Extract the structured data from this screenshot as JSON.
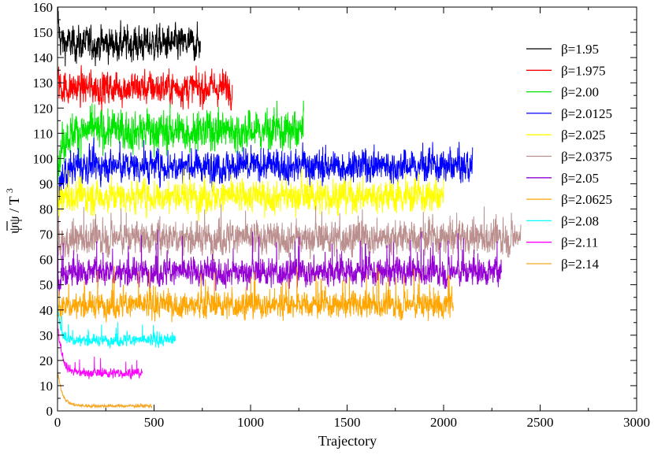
{
  "chart_data": {
    "type": "line",
    "title": "",
    "xlabel": "Trajectory",
    "ylabel_main": "ψψ / T",
    "ylabel_sup": "3",
    "xlim": [
      0,
      3000
    ],
    "ylim": [
      0,
      160
    ],
    "xticks": [
      0,
      500,
      1000,
      1500,
      2000,
      2500,
      3000
    ],
    "yticks": [
      0,
      10,
      20,
      30,
      40,
      50,
      60,
      70,
      80,
      90,
      100,
      110,
      120,
      130,
      140,
      150,
      160
    ],
    "grid": false,
    "legend_position": "top-right",
    "series": [
      {
        "name": "β=1.95",
        "color": "#000000",
        "start": 160,
        "mean": 145.5,
        "amp": 3.0,
        "end": 740,
        "spike": 0.0,
        "spikeAmp": 0,
        "relax": 8
      },
      {
        "name": "β=1.975",
        "color": "#ff0000",
        "start": 132,
        "mean": 128,
        "amp": 3.0,
        "end": 905,
        "spike": 0.0,
        "spikeAmp": 0,
        "relax": 10
      },
      {
        "name": "β=2.00",
        "color": "#00e600",
        "start": 95,
        "mean": 111,
        "amp": 3.5,
        "end": 1275,
        "spike": 0.02,
        "spikeAmp": 6,
        "relax": 25
      },
      {
        "name": "β=2.0125",
        "color": "#0000ff",
        "start": 86,
        "mean": 97,
        "amp": 2.8,
        "end": 2150,
        "spike": 0.02,
        "spikeAmp": 8,
        "relax": 30
      },
      {
        "name": "β=2.025",
        "color": "#ffff00",
        "start": 82,
        "mean": 85,
        "amp": 2.8,
        "end": 2000,
        "spike": 0.03,
        "spikeAmp": 8,
        "relax": 20
      },
      {
        "name": "β=2.0375",
        "color": "#bc8f8f",
        "start": 63,
        "mean": 68.5,
        "amp": 2.8,
        "end": 2400,
        "spike": 0.04,
        "spikeAmp": 10,
        "relax": 40
      },
      {
        "name": "β=2.05",
        "color": "#9400d3",
        "start": 50,
        "mean": 55,
        "amp": 2.4,
        "end": 2300,
        "spike": 0.04,
        "spikeAmp": 14,
        "relax": 30
      },
      {
        "name": "β=2.0625",
        "color": "#ffa500",
        "start": 40,
        "mean": 42,
        "amp": 2.2,
        "end": 2050,
        "spike": 0.05,
        "spikeAmp": 13,
        "relax": 30
      },
      {
        "name": "β=2.08",
        "color": "#00ffff",
        "start": 44,
        "mean": 28,
        "amp": 1.0,
        "end": 610,
        "spike": 0.05,
        "spikeAmp": 6,
        "relax": 15
      },
      {
        "name": "β=2.11",
        "color": "#ff00ff",
        "start": 35,
        "mean": 15,
        "amp": 0.8,
        "end": 440,
        "spike": 0.03,
        "spikeAmp": 6,
        "relax": 25
      },
      {
        "name": "β=2.14",
        "color": "#f5a623",
        "start": 16,
        "mean": 2,
        "amp": 0.3,
        "end": 490,
        "spike": 0.0,
        "spikeAmp": 0,
        "relax": 25
      }
    ]
  }
}
